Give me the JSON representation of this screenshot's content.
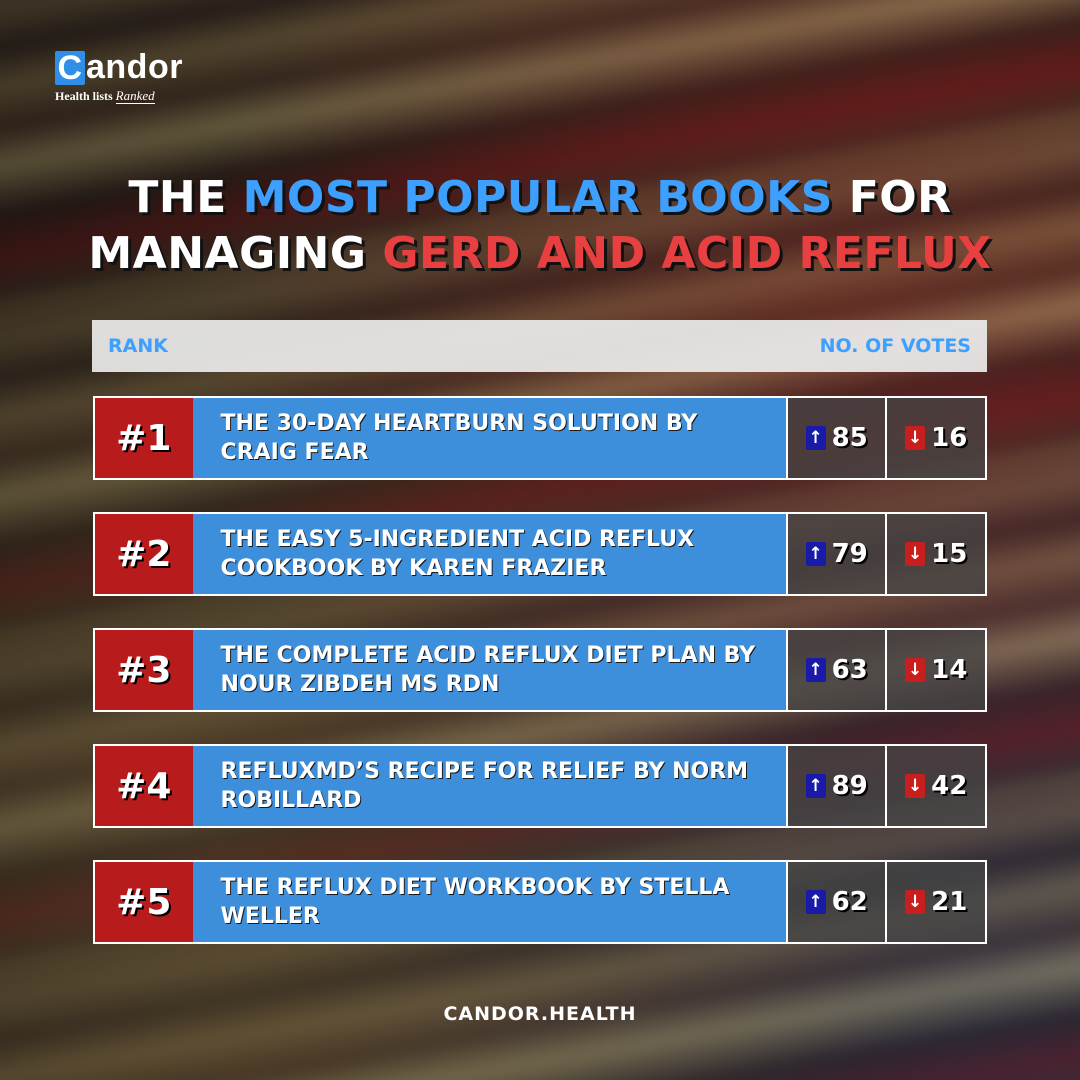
{
  "brand": {
    "logo_letter": "C",
    "logo_rest": "andor",
    "tagline": "Health lists",
    "tagline_accent": "Ranked"
  },
  "title": {
    "line1_a": "THE ",
    "line1_b": "MOST POPULAR BOOKS",
    "line1_c": " FOR",
    "line2_a": "MANAGING ",
    "line2_b": "GERD AND ACID REFLUX"
  },
  "table_header": {
    "left": "RANK",
    "right": "NO. OF VOTES"
  },
  "rows": [
    {
      "rank": "#1",
      "book": "THE 30-DAY HEARTBURN SOLUTION BY CRAIG FEAR",
      "up": "85",
      "down": "16"
    },
    {
      "rank": "#2",
      "book": "THE EASY 5-INGREDIENT ACID REFLUX COOKBOOK BY KAREN FRAZIER",
      "up": "79",
      "down": "15"
    },
    {
      "rank": "#3",
      "book": "THE COMPLETE ACID REFLUX DIET PLAN BY NOUR ZIBDEH MS RDN",
      "up": "63",
      "down": "14"
    },
    {
      "rank": "#4",
      "book": "REFLUXMD’S RECIPE FOR RELIEF BY NORM ROBILLARD",
      "up": "89",
      "down": "42"
    },
    {
      "rank": "#5",
      "book": "THE REFLUX DIET WORKBOOK BY STELLA WELLER",
      "up": "62",
      "down": "21"
    }
  ],
  "icons": {
    "up": "↑",
    "down": "↓"
  },
  "colors": {
    "accent_blue": "#3da0ff",
    "accent_red": "#e84040",
    "rank_bg": "#b81b1b",
    "book_bg": "#3d8fdb"
  },
  "footer": "CANDOR.HEALTH"
}
